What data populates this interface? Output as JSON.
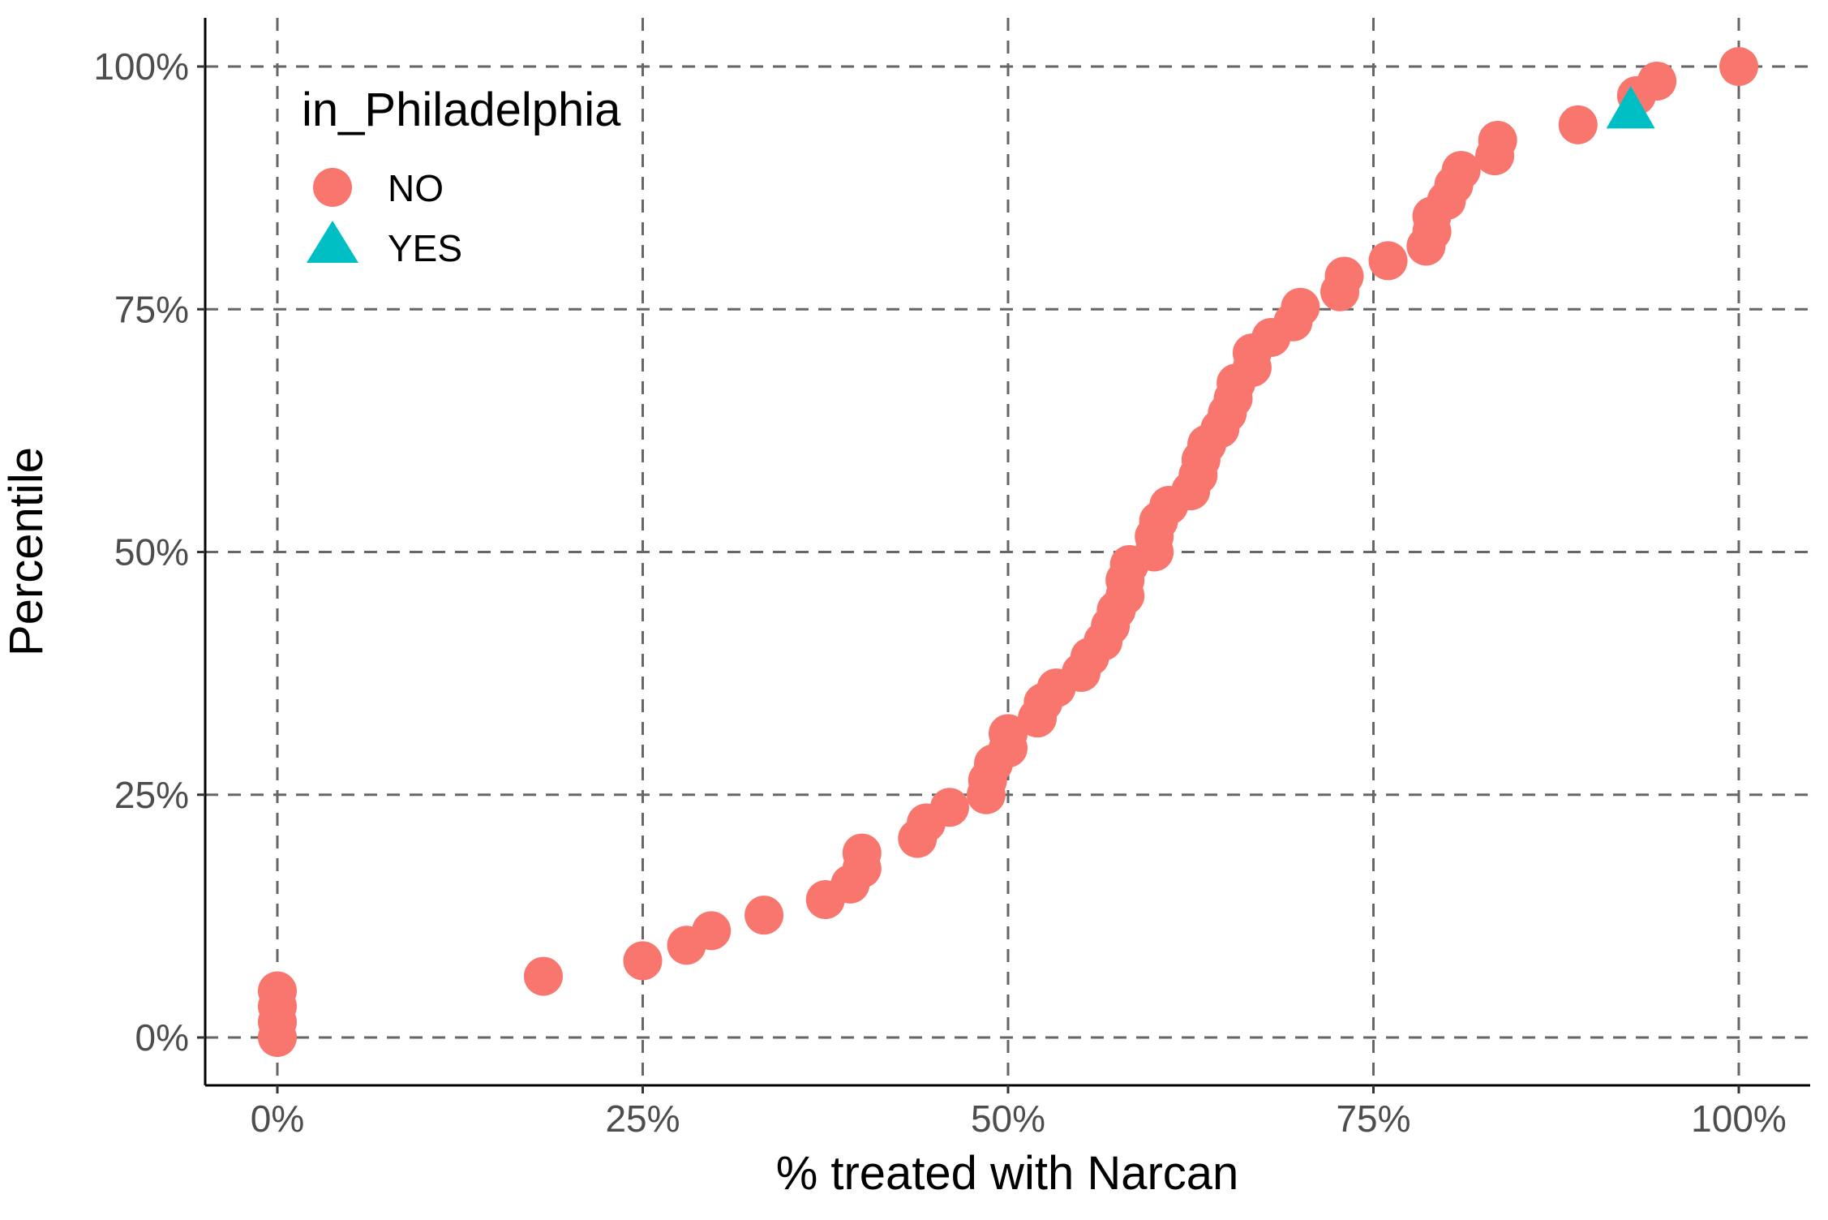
{
  "chart_data": {
    "type": "scatter",
    "xlabel": "% treated with Narcan",
    "ylabel": "Percentile",
    "xlim": [
      -0.05,
      1.05
    ],
    "ylim": [
      -0.05,
      1.05
    ],
    "x_ticks": [
      0,
      0.25,
      0.5,
      0.75,
      1.0
    ],
    "x_tick_labels": [
      "0%",
      "25%",
      "50%",
      "75%",
      "100%"
    ],
    "y_ticks": [
      0,
      0.25,
      0.5,
      0.75,
      1.0
    ],
    "y_tick_labels": [
      "0%",
      "25%",
      "50%",
      "75%",
      "100%"
    ],
    "grid": "major, dashed",
    "legend": {
      "title": "in_Philadelphia",
      "placement": "top-left",
      "entries": [
        {
          "label": "NO",
          "shape": "circle",
          "color": "#F8766D"
        },
        {
          "label": "YES",
          "shape": "triangle",
          "color": "#00BFC4"
        }
      ]
    },
    "series": [
      {
        "name": "NO",
        "shape": "circle",
        "color": "#F8766D",
        "points": [
          [
            0.0,
            0.0
          ],
          [
            0.0,
            0.016
          ],
          [
            0.0,
            0.032
          ],
          [
            0.0,
            0.048
          ],
          [
            0.182,
            0.063
          ],
          [
            0.25,
            0.079
          ],
          [
            0.28,
            0.095
          ],
          [
            0.297,
            0.11
          ],
          [
            0.333,
            0.126
          ],
          [
            0.375,
            0.142
          ],
          [
            0.392,
            0.158
          ],
          [
            0.4,
            0.174
          ],
          [
            0.4,
            0.19
          ],
          [
            0.438,
            0.205
          ],
          [
            0.444,
            0.221
          ],
          [
            0.46,
            0.237
          ],
          [
            0.485,
            0.25
          ],
          [
            0.486,
            0.265
          ],
          [
            0.49,
            0.282
          ],
          [
            0.5,
            0.298
          ],
          [
            0.5,
            0.313
          ],
          [
            0.52,
            0.329
          ],
          [
            0.524,
            0.345
          ],
          [
            0.533,
            0.36
          ],
          [
            0.55,
            0.376
          ],
          [
            0.556,
            0.392
          ],
          [
            0.565,
            0.408
          ],
          [
            0.57,
            0.424
          ],
          [
            0.574,
            0.44
          ],
          [
            0.58,
            0.455
          ],
          [
            0.58,
            0.471
          ],
          [
            0.583,
            0.487
          ],
          [
            0.6,
            0.5
          ],
          [
            0.6,
            0.516
          ],
          [
            0.603,
            0.532
          ],
          [
            0.61,
            0.548
          ],
          [
            0.625,
            0.563
          ],
          [
            0.63,
            0.579
          ],
          [
            0.632,
            0.595
          ],
          [
            0.636,
            0.611
          ],
          [
            0.645,
            0.627
          ],
          [
            0.65,
            0.643
          ],
          [
            0.654,
            0.658
          ],
          [
            0.656,
            0.674
          ],
          [
            0.667,
            0.69
          ],
          [
            0.667,
            0.705
          ],
          [
            0.68,
            0.721
          ],
          [
            0.695,
            0.737
          ],
          [
            0.7,
            0.752
          ],
          [
            0.727,
            0.768
          ],
          [
            0.73,
            0.784
          ],
          [
            0.76,
            0.8
          ],
          [
            0.786,
            0.815
          ],
          [
            0.79,
            0.83
          ],
          [
            0.79,
            0.846
          ],
          [
            0.8,
            0.862
          ],
          [
            0.805,
            0.878
          ],
          [
            0.81,
            0.893
          ],
          [
            0.833,
            0.908
          ],
          [
            0.835,
            0.924
          ],
          [
            0.89,
            0.94
          ],
          [
            0.93,
            0.97
          ],
          [
            0.944,
            0.985
          ],
          [
            1.0,
            1.0
          ]
        ]
      },
      {
        "name": "YES",
        "shape": "triangle",
        "color": "#00BFC4",
        "points": [
          [
            0.926,
            0.955
          ]
        ]
      }
    ]
  }
}
